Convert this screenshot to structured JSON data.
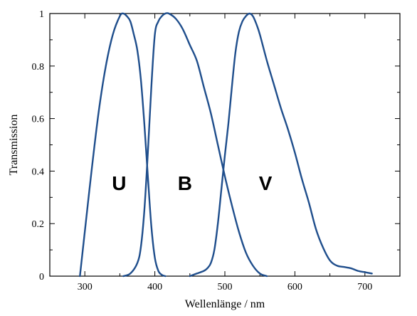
{
  "chart_data": {
    "type": "line",
    "title": "",
    "xlabel": "Wellenlänge / nm",
    "ylabel": "Transmission",
    "xlim": [
      250,
      750
    ],
    "ylim": [
      0,
      1
    ],
    "xticks": [
      300,
      400,
      500,
      600,
      700
    ],
    "yticks": [
      0,
      0.2,
      0.4,
      0.6,
      0.8,
      1
    ],
    "ytick_labels": [
      "0",
      "0.2",
      "0.4",
      "0.6",
      "0.8",
      "1"
    ],
    "grid": false,
    "line_color": "#1f4e8c",
    "series": [
      {
        "name": "U",
        "x": [
          293,
          300,
          310,
          320,
          330,
          340,
          350,
          355,
          360,
          365,
          370,
          375,
          380,
          385,
          390,
          395,
          400,
          405,
          410,
          415
        ],
        "y": [
          0.0,
          0.17,
          0.41,
          0.63,
          0.8,
          0.92,
          0.99,
          1.0,
          0.99,
          0.97,
          0.92,
          0.86,
          0.75,
          0.58,
          0.38,
          0.19,
          0.07,
          0.02,
          0.005,
          0.0
        ]
      },
      {
        "name": "B",
        "x": [
          355,
          365,
          375,
          380,
          385,
          390,
          395,
          400,
          405,
          410,
          415,
          420,
          430,
          440,
          450,
          460,
          470,
          480,
          490,
          500,
          510,
          520,
          530,
          540,
          550,
          560
        ],
        "y": [
          0.0,
          0.01,
          0.05,
          0.11,
          0.25,
          0.47,
          0.72,
          0.92,
          0.97,
          0.99,
          1.0,
          1.0,
          0.98,
          0.94,
          0.88,
          0.82,
          0.72,
          0.62,
          0.5,
          0.38,
          0.27,
          0.17,
          0.09,
          0.04,
          0.01,
          0.0
        ]
      },
      {
        "name": "V",
        "x": [
          450,
          460,
          470,
          475,
          480,
          485,
          490,
          495,
          500,
          505,
          510,
          515,
          520,
          525,
          530,
          535,
          540,
          545,
          550,
          560,
          570,
          580,
          590,
          600,
          610,
          620,
          630,
          640,
          650,
          660,
          670,
          680,
          690,
          700,
          710
        ],
        "y": [
          0.0,
          0.01,
          0.02,
          0.03,
          0.05,
          0.1,
          0.2,
          0.33,
          0.46,
          0.58,
          0.72,
          0.85,
          0.93,
          0.97,
          0.99,
          1.0,
          0.99,
          0.96,
          0.92,
          0.82,
          0.73,
          0.64,
          0.56,
          0.47,
          0.37,
          0.28,
          0.18,
          0.11,
          0.06,
          0.04,
          0.035,
          0.03,
          0.02,
          0.015,
          0.01
        ]
      }
    ],
    "annotations": [
      {
        "text": "U",
        "x": 349,
        "y": 0.355
      },
      {
        "text": "B",
        "x": 443,
        "y": 0.355
      },
      {
        "text": "V",
        "x": 558,
        "y": 0.355
      }
    ]
  }
}
